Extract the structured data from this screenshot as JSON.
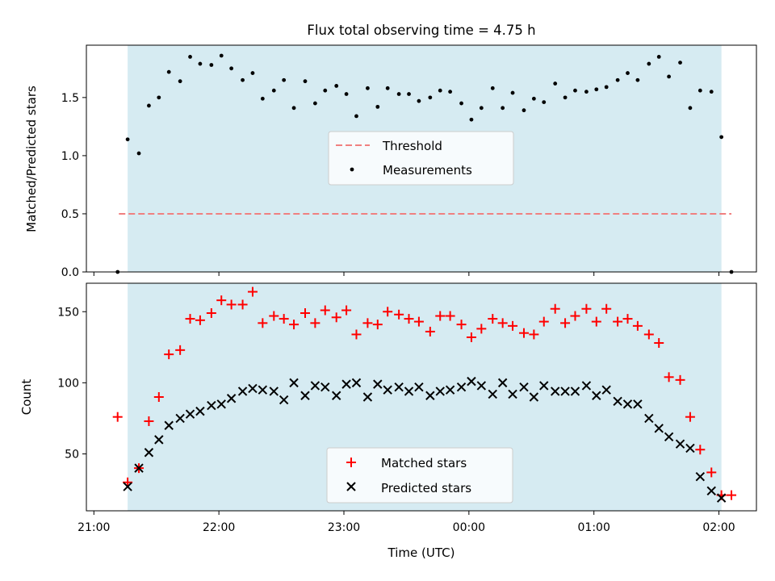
{
  "figure_title": "Flux total observing time = 4.75 h",
  "xlabel": "Time (UTC)",
  "x_tick_labels": [
    "21:00",
    "22:00",
    "23:00",
    "00:00",
    "01:00",
    "02:00"
  ],
  "colors": {
    "shade": "#add8e6",
    "threshold": "#f08080",
    "measurement": "#000000",
    "matched": "#ff0000",
    "predicted": "#000000"
  },
  "chart_data": [
    {
      "type": "scatter",
      "ylabel": "Matched/Predicted stars",
      "x_unit": "hours since 21:00 UTC",
      "xlim": [
        -0.06,
        5.3
      ],
      "ylim": [
        0,
        1.95
      ],
      "yticks": [
        0.0,
        0.5,
        1.0,
        1.5
      ],
      "ytick_labels": [
        "0.0",
        "0.5",
        "1.0",
        "1.5"
      ],
      "shaded_span": [
        0.27,
        5.02
      ],
      "legend": {
        "position": "center",
        "entries": [
          "Threshold",
          "Measurements"
        ]
      },
      "series": [
        {
          "name": "Threshold",
          "kind": "dashed-line",
          "x": [
            0.2,
            5.1
          ],
          "y": [
            0.5,
            0.5
          ]
        },
        {
          "name": "Measurements",
          "kind": "points",
          "x": [
            0.19,
            0.27,
            0.36,
            0.44,
            0.52,
            0.6,
            0.69,
            0.77,
            0.85,
            0.94,
            1.02,
            1.1,
            1.19,
            1.27,
            1.35,
            1.44,
            1.52,
            1.6,
            1.69,
            1.77,
            1.85,
            1.94,
            2.02,
            2.1,
            2.19,
            2.27,
            2.35,
            2.44,
            2.52,
            2.6,
            2.69,
            2.77,
            2.85,
            2.94,
            3.02,
            3.1,
            3.19,
            3.27,
            3.35,
            3.44,
            3.52,
            3.6,
            3.69,
            3.77,
            3.85,
            3.94,
            4.02,
            4.1,
            4.19,
            4.27,
            4.35,
            4.44,
            4.52,
            4.6,
            4.69,
            4.77,
            4.85,
            4.94,
            5.02,
            5.1
          ],
          "y": [
            0.0,
            1.14,
            1.02,
            1.43,
            1.5,
            1.72,
            1.64,
            1.85,
            1.79,
            1.78,
            1.86,
            1.75,
            1.65,
            1.71,
            1.49,
            1.56,
            1.65,
            1.41,
            1.64,
            1.45,
            1.56,
            1.6,
            1.53,
            1.34,
            1.58,
            1.42,
            1.58,
            1.53,
            1.53,
            1.47,
            1.5,
            1.56,
            1.55,
            1.45,
            1.31,
            1.41,
            1.58,
            1.41,
            1.54,
            1.39,
            1.49,
            1.46,
            1.62,
            1.5,
            1.56,
            1.55,
            1.57,
            1.59,
            1.65,
            1.71,
            1.65,
            1.79,
            1.85,
            1.68,
            1.8,
            1.41,
            1.56,
            1.55,
            1.16,
            0.0
          ]
        }
      ]
    },
    {
      "type": "scatter",
      "ylabel": "Count",
      "x_unit": "hours since 21:00 UTC",
      "xlim": [
        -0.06,
        5.3
      ],
      "ylim": [
        10,
        170
      ],
      "yticks": [
        50,
        100,
        150
      ],
      "ytick_labels": [
        "50",
        "100",
        "150"
      ],
      "shaded_span": [
        0.27,
        5.02
      ],
      "legend": {
        "position": "lower center",
        "entries": [
          "Matched stars",
          "Predicted stars"
        ]
      },
      "series": [
        {
          "name": "Matched stars",
          "marker": "plus",
          "x": [
            0.19,
            0.27,
            0.36,
            0.44,
            0.52,
            0.6,
            0.69,
            0.77,
            0.85,
            0.94,
            1.02,
            1.1,
            1.19,
            1.27,
            1.35,
            1.44,
            1.52,
            1.6,
            1.69,
            1.77,
            1.85,
            1.94,
            2.02,
            2.1,
            2.19,
            2.27,
            2.35,
            2.44,
            2.52,
            2.6,
            2.69,
            2.77,
            2.85,
            2.94,
            3.02,
            3.1,
            3.19,
            3.27,
            3.35,
            3.44,
            3.52,
            3.6,
            3.69,
            3.77,
            3.85,
            3.94,
            4.02,
            4.1,
            4.19,
            4.27,
            4.35,
            4.44,
            4.52,
            4.6,
            4.69,
            4.77,
            4.85,
            4.94,
            5.02,
            5.1
          ],
          "y": [
            76,
            30,
            40,
            73,
            90,
            120,
            123,
            145,
            144,
            149,
            158,
            155,
            155,
            164,
            142,
            147,
            145,
            141,
            149,
            142,
            151,
            146,
            151,
            134,
            142,
            141,
            150,
            148,
            145,
            143,
            136,
            147,
            147,
            141,
            132,
            138,
            145,
            142,
            140,
            135,
            134,
            143,
            152,
            142,
            147,
            152,
            143,
            152,
            143,
            145,
            140,
            134,
            128,
            104,
            102,
            76,
            53,
            37,
            21,
            21
          ]
        },
        {
          "name": "Predicted stars",
          "marker": "x",
          "x": [
            0.27,
            0.36,
            0.44,
            0.52,
            0.6,
            0.69,
            0.77,
            0.85,
            0.94,
            1.02,
            1.1,
            1.19,
            1.27,
            1.35,
            1.44,
            1.52,
            1.6,
            1.69,
            1.77,
            1.85,
            1.94,
            2.02,
            2.1,
            2.19,
            2.27,
            2.35,
            2.44,
            2.52,
            2.6,
            2.69,
            2.77,
            2.85,
            2.94,
            3.02,
            3.1,
            3.19,
            3.27,
            3.35,
            3.44,
            3.52,
            3.6,
            3.69,
            3.77,
            3.85,
            3.94,
            4.02,
            4.1,
            4.19,
            4.27,
            4.35,
            4.44,
            4.52,
            4.6,
            4.69,
            4.77,
            4.85,
            4.94,
            5.02
          ],
          "y": [
            27,
            40,
            51,
            60,
            70,
            75,
            78,
            80,
            84,
            85,
            89,
            94,
            96,
            95,
            94,
            88,
            100,
            91,
            98,
            97,
            91,
            99,
            100,
            90,
            99,
            95,
            97,
            94,
            97,
            91,
            94,
            95,
            97,
            101,
            98,
            92,
            100,
            92,
            97,
            90,
            98,
            94,
            94,
            94,
            98,
            91,
            95,
            87,
            85,
            85,
            75,
            68,
            62,
            57,
            54,
            34,
            24,
            19
          ]
        }
      ]
    }
  ]
}
